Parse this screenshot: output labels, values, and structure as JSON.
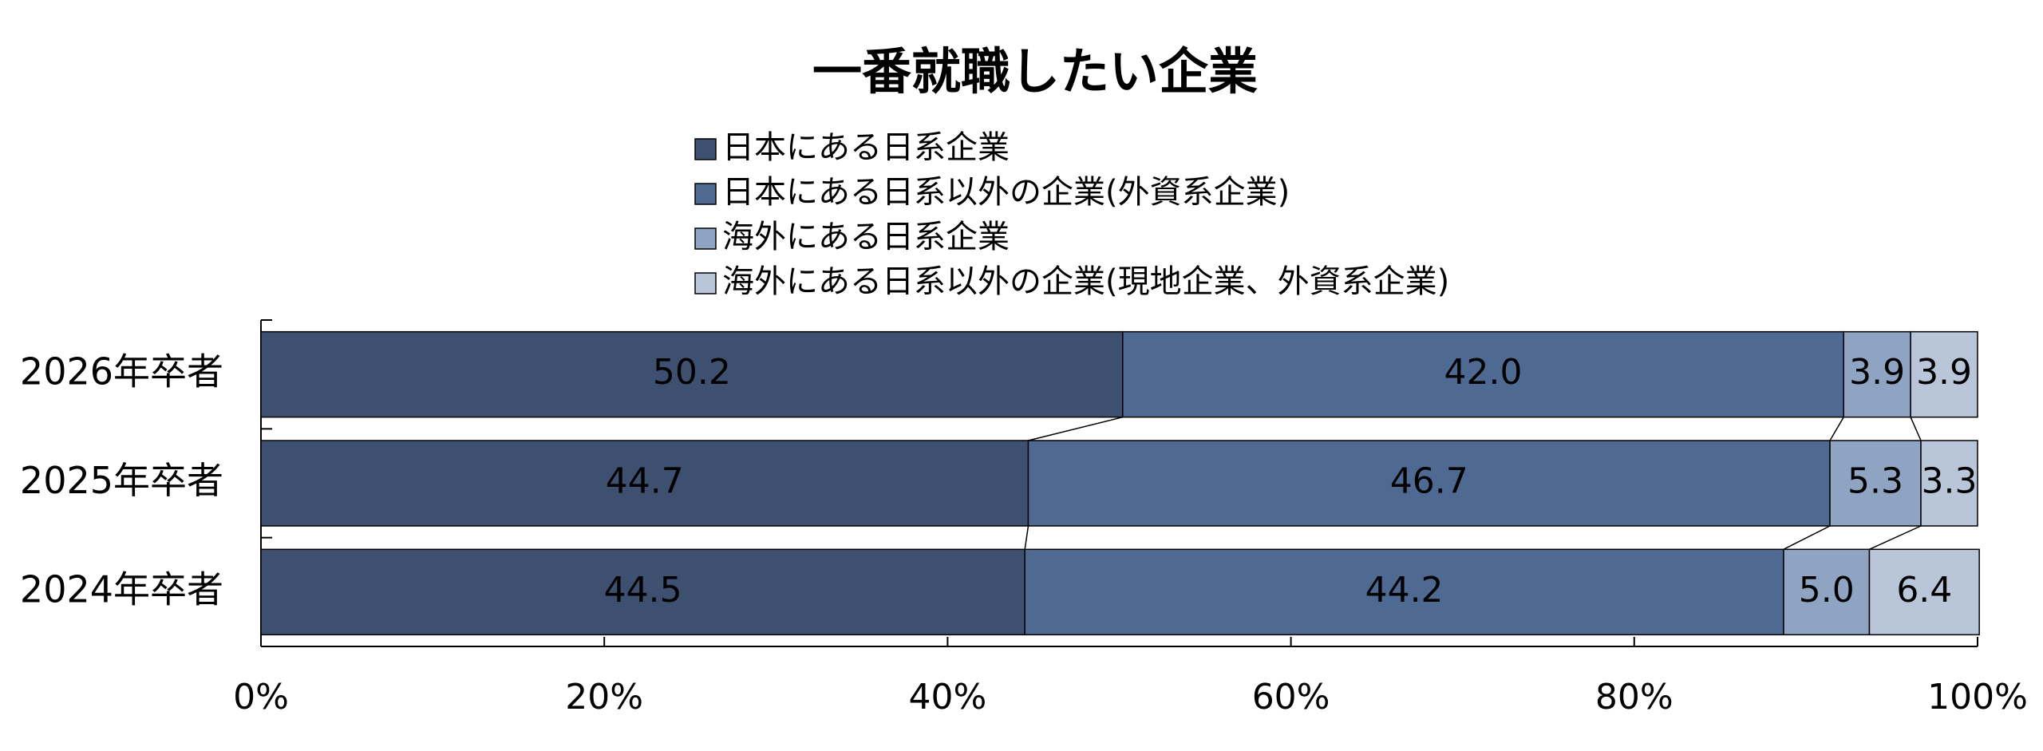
{
  "chart_data": {
    "type": "stacked-bar-horizontal",
    "title": "一番就職したい企業",
    "categories": [
      "2026年卒者",
      "2025年卒者",
      "2024年卒者"
    ],
    "series": [
      {
        "name": "日本にある日系企業",
        "color": "#3d5070",
        "values": [
          50.2,
          44.7,
          44.5
        ],
        "value_labels": [
          "50.2",
          "44.7",
          "44.5"
        ]
      },
      {
        "name": "日本にある日系以外の企業(外資系企業)",
        "color": "#4e6a92",
        "values": [
          42.0,
          46.7,
          44.2
        ],
        "value_labels": [
          "42.0",
          "46.7",
          "44.2"
        ]
      },
      {
        "name": "海外にある日系企業",
        "color": "#8fa3c2",
        "values": [
          3.9,
          5.3,
          5.0
        ],
        "value_labels": [
          "3.9",
          "5.3",
          "5.0"
        ]
      },
      {
        "name": "海外にある日系以外の企業(現地企業、外資系企業)",
        "color": "#b9c6da",
        "values": [
          3.9,
          3.3,
          6.4
        ],
        "value_labels": [
          "3.9",
          "3.3",
          "6.4"
        ]
      }
    ],
    "xlim": [
      0,
      100
    ],
    "xticks": [
      {
        "value": 0,
        "label": "0%"
      },
      {
        "value": 20,
        "label": "20%"
      },
      {
        "value": 40,
        "label": "40%"
      },
      {
        "value": 60,
        "label": "60%"
      },
      {
        "value": 80,
        "label": "80%"
      },
      {
        "value": 100,
        "label": "100%"
      }
    ],
    "legend": "top"
  }
}
